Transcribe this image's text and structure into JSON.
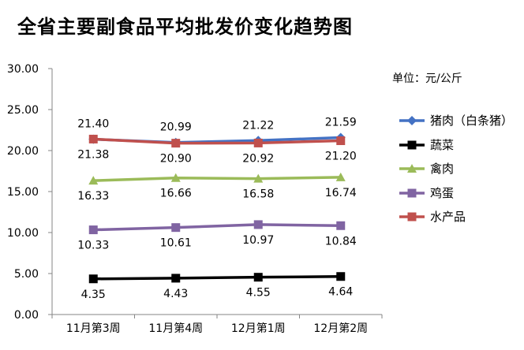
{
  "chart_data": {
    "type": "line",
    "title": "全省主要副食品平均批发价变化趋势图",
    "unit_label": "单位：元/公斤",
    "categories": [
      "11月第3周",
      "11月第4周",
      "12月第1周",
      "12月第2周"
    ],
    "ylim": [
      0,
      30
    ],
    "yticks": [
      "0.00",
      "5.00",
      "10.00",
      "15.00",
      "20.00",
      "25.00",
      "30.00"
    ],
    "grid": false,
    "legend_position": "right",
    "series": [
      {
        "name": "猪肉（白条猪）",
        "values": [
          21.38,
          20.99,
          21.22,
          21.59
        ],
        "labels": [
          "21.38",
          "20.99",
          "21.22",
          "21.59"
        ],
        "color": "#4472c4",
        "marker": "diamond",
        "label_pos": [
          "below",
          "above",
          "above",
          "above"
        ]
      },
      {
        "name": "蔬菜",
        "values": [
          4.35,
          4.43,
          4.55,
          4.64
        ],
        "labels": [
          "4.35",
          "4.43",
          "4.55",
          "4.64"
        ],
        "color": "#000000",
        "marker": "square",
        "label_pos": [
          "below",
          "below",
          "below",
          "below"
        ]
      },
      {
        "name": "禽肉",
        "values": [
          16.33,
          16.66,
          16.58,
          16.74
        ],
        "labels": [
          "16.33",
          "16.66",
          "16.58",
          "16.74"
        ],
        "color": "#9bbb59",
        "marker": "triangle",
        "label_pos": [
          "below",
          "below",
          "below",
          "below"
        ]
      },
      {
        "name": "鸡蛋",
        "values": [
          10.33,
          10.61,
          10.97,
          10.84
        ],
        "labels": [
          "10.33",
          "10.61",
          "10.97",
          "10.84"
        ],
        "color": "#8064a2",
        "marker": "square",
        "label_pos": [
          "below",
          "below",
          "below",
          "below"
        ]
      },
      {
        "name": "水产品",
        "values": [
          21.4,
          20.9,
          20.92,
          21.2
        ],
        "labels": [
          "21.40",
          "20.90",
          "20.92",
          "21.20"
        ],
        "color": "#c0504d",
        "marker": "square",
        "label_pos": [
          "above",
          "below",
          "below",
          "below"
        ]
      }
    ]
  }
}
